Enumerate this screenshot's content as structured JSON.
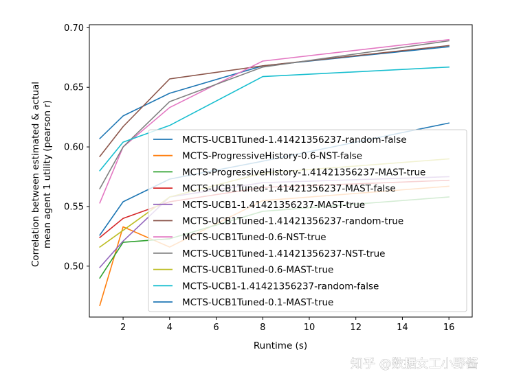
{
  "chart_data": {
    "type": "line",
    "xlabel": "Runtime (s)",
    "ylabel_lines": [
      "Correlation between estimated & actual",
      "mean agent 1 utility (pearson r)"
    ],
    "xlim": [
      0.55,
      17.0
    ],
    "ylim": [
      0.4573,
      0.7025
    ],
    "xticks": [
      2,
      4,
      6,
      8,
      10,
      12,
      14,
      16
    ],
    "yticks": [
      0.5,
      0.55,
      0.6,
      0.65,
      0.7
    ],
    "ytick_labels": [
      "0.50",
      "0.55",
      "0.60",
      "0.65",
      "0.70"
    ],
    "grid": false,
    "legend_position": "center-right",
    "x": [
      1,
      2,
      4,
      8,
      16
    ],
    "series": [
      {
        "name": "MCTS-UCB1Tuned-1.41421356237-random-false",
        "color": "#1f77b4",
        "values": [
          0.607,
          0.626,
          0.645,
          0.668,
          0.684
        ]
      },
      {
        "name": "MCTS-ProgressiveHistory-0.6-NST-false",
        "color": "#ff7f0e",
        "values": [
          0.467,
          0.533,
          0.516,
          0.555,
          0.567
        ]
      },
      {
        "name": "MCTS-ProgressiveHistory-1.41421356237-MAST-true",
        "color": "#2ca02c",
        "values": [
          0.49,
          0.52,
          0.523,
          0.546,
          0.558
        ]
      },
      {
        "name": "MCTS-UCB1Tuned-1.41421356237-MAST-false",
        "color": "#d62728",
        "values": [
          0.524,
          0.54,
          0.554,
          0.566,
          0.572
        ]
      },
      {
        "name": "MCTS-UCB1-1.41421356237-MAST-true",
        "color": "#9467bd",
        "values": [
          0.499,
          0.521,
          0.558,
          0.57,
          0.575
        ]
      },
      {
        "name": "MCTS-UCB1Tuned-1.41421356237-random-true",
        "color": "#8c564b",
        "values": [
          0.592,
          0.617,
          0.657,
          0.668,
          0.685
        ]
      },
      {
        "name": "MCTS-UCB1Tuned-0.6-NST-true",
        "color": "#e377c2",
        "values": [
          0.553,
          0.6,
          0.633,
          0.672,
          0.69
        ]
      },
      {
        "name": "MCTS-UCB1Tuned-1.41421356237-NST-true",
        "color": "#7f7f7f",
        "values": [
          0.565,
          0.6,
          0.638,
          0.667,
          0.689
        ]
      },
      {
        "name": "MCTS-UCB1Tuned-0.6-MAST-true",
        "color": "#bcbd22",
        "values": [
          0.516,
          0.53,
          0.558,
          0.578,
          0.59
        ]
      },
      {
        "name": "MCTS-UCB1-1.41421356237-random-false",
        "color": "#17becf",
        "values": [
          0.58,
          0.604,
          0.618,
          0.659,
          0.667
        ]
      },
      {
        "name": "MCTS-UCB1Tuned-0.1-MAST-true",
        "color": "#1f77b4",
        "values": [
          0.526,
          0.554,
          0.573,
          0.588,
          0.62
        ]
      }
    ]
  },
  "watermark": "知乎 @数据女工小野酱"
}
